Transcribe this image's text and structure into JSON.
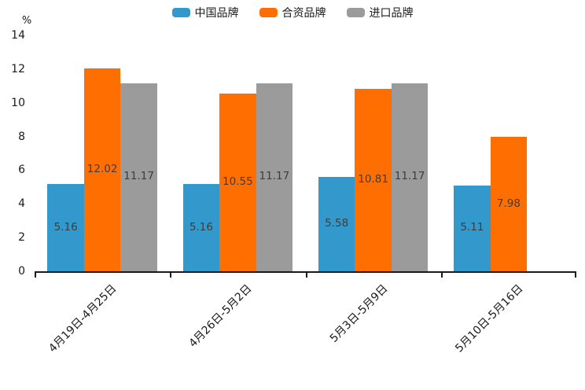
{
  "chart_data": {
    "type": "bar",
    "title": "",
    "unit_label": "%",
    "categories": [
      "4月19日-4月25日",
      "4月26日-5月2日",
      "5月3日-5月9日",
      "5月10日-5月16日"
    ],
    "series": [
      {
        "name": "中国品牌",
        "color": "#3398cb",
        "values": [
          5.16,
          5.16,
          5.58,
          5.11
        ]
      },
      {
        "name": "合资品牌",
        "color": "#ff6e00",
        "values": [
          12.02,
          10.55,
          10.81,
          7.98
        ]
      },
      {
        "name": "进口品牌",
        "color": "#9b9b9b",
        "values": [
          11.17,
          11.17,
          11.17,
          null
        ]
      }
    ],
    "value_labels": true,
    "ylim": [
      0,
      14
    ],
    "yticks": [
      0,
      2,
      4,
      6,
      8,
      10,
      12,
      14
    ],
    "grid": false,
    "legend_position": "top",
    "x_label_rotation_deg": -45
  }
}
